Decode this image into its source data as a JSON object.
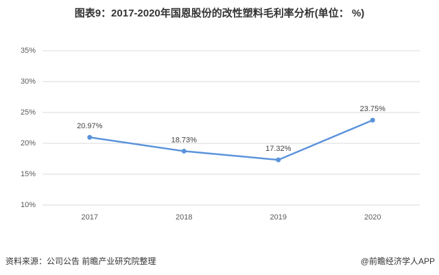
{
  "chart_data": {
    "type": "line",
    "title": "图表9：2017-2020年国恩股份的改性塑料毛利率分析(单位： %)",
    "categories": [
      "2017",
      "2018",
      "2019",
      "2020"
    ],
    "values": [
      20.97,
      18.73,
      17.32,
      23.75
    ],
    "value_labels": [
      "20.97%",
      "18.73%",
      "17.32%",
      "23.75%"
    ],
    "color": "#5b93db",
    "ylim": [
      10,
      35
    ],
    "yticks": [
      {
        "value": 10,
        "label": "10%"
      },
      {
        "value": 15,
        "label": "15%"
      },
      {
        "value": 20,
        "label": "20%"
      },
      {
        "value": 25,
        "label": "25%"
      },
      {
        "value": 30,
        "label": "30%"
      },
      {
        "value": 35,
        "label": "35%"
      }
    ],
    "grid": true,
    "source": "资料来源：公司公告 前瞻产业研究院整理",
    "credit": "@前瞻经济学人APP"
  }
}
